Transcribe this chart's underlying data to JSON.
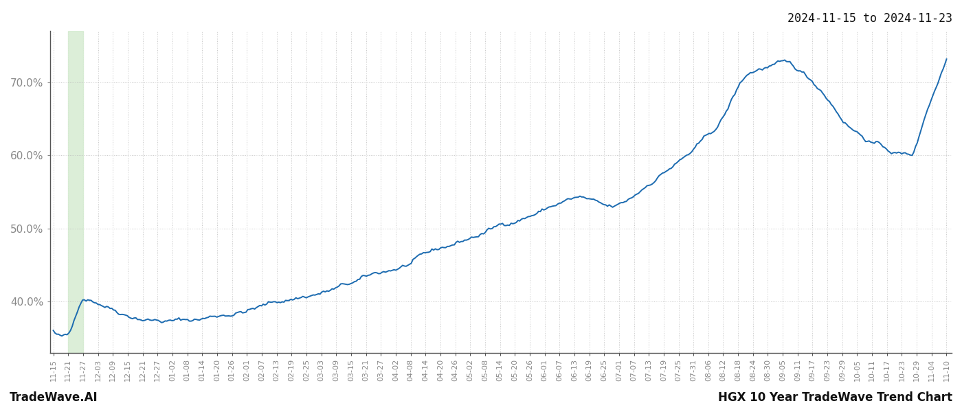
{
  "title_right": "2024-11-15 to 2024-11-23",
  "footer_left": "TradeWave.AI",
  "footer_right": "HGX 10 Year TradeWave Trend Chart",
  "y_min": 33.0,
  "y_max": 77.0,
  "y_ticks": [
    40.0,
    50.0,
    60.0,
    70.0
  ],
  "line_color": "#1c6bb0",
  "line_width": 1.4,
  "shade_color": "#d6ecd2",
  "shade_alpha": 0.85,
  "background_color": "#ffffff",
  "grid_color": "#bbbbbb",
  "grid_style": ":",
  "grid_alpha": 0.8,
  "axis_color": "#555555",
  "tick_label_color": "#888888",
  "title_fontsize": 12,
  "footer_fontsize": 12,
  "tick_fontsize": 8,
  "x_labels": [
    "11-15",
    "11-21",
    "11-27",
    "12-03",
    "12-09",
    "12-15",
    "12-21",
    "12-27",
    "01-02",
    "01-08",
    "01-14",
    "01-20",
    "01-26",
    "02-01",
    "02-07",
    "02-13",
    "02-19",
    "02-25",
    "03-03",
    "03-09",
    "03-15",
    "03-21",
    "03-27",
    "04-02",
    "04-08",
    "04-14",
    "04-20",
    "04-26",
    "05-02",
    "05-08",
    "05-14",
    "05-20",
    "05-26",
    "06-01",
    "06-07",
    "06-13",
    "06-19",
    "06-25",
    "07-01",
    "07-07",
    "07-13",
    "07-19",
    "07-25",
    "07-31",
    "08-06",
    "08-12",
    "08-18",
    "08-24",
    "08-30",
    "09-05",
    "09-11",
    "09-17",
    "09-23",
    "09-29",
    "10-05",
    "10-11",
    "10-17",
    "10-23",
    "10-29",
    "11-04",
    "11-10"
  ],
  "shade_x_start_label": "11-21",
  "shade_x_end_label": "11-27",
  "n_total_points": 520,
  "seed": 42
}
